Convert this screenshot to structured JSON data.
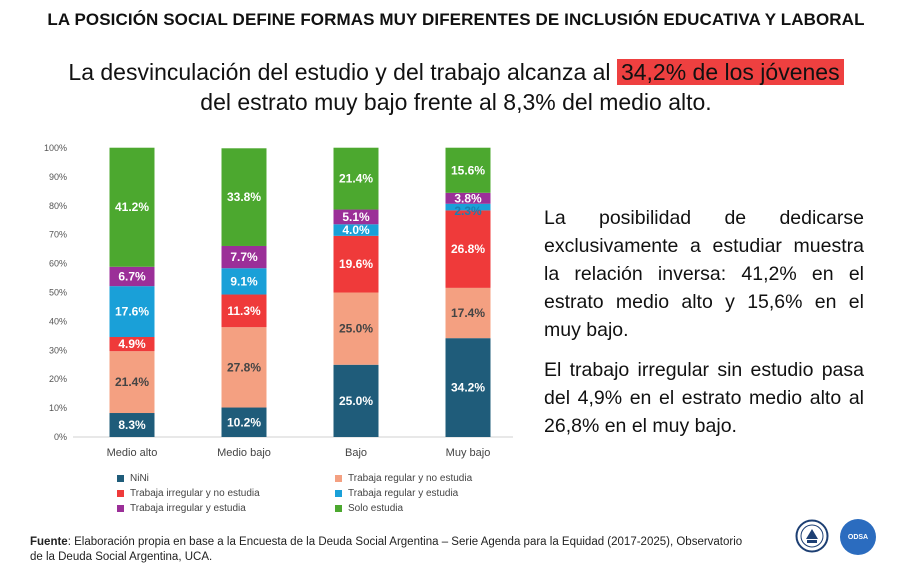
{
  "header": {
    "title": "LA POSICIÓN SOCIAL DEFINE FORMAS MUY DIFERENTES DE INCLUSIÓN EDUCATIVA Y LABORAL",
    "subtitle_before": "La desvinculación del estudio y del trabajo alcanza al ",
    "subtitle_highlight": "34,2% de los jóvenes",
    "subtitle_after": "del estrato muy bajo frente al 8,3% del medio alto."
  },
  "notes": {
    "p1": "La posibilidad de dedicarse exclusivamente a estudiar muestra la relación inversa: 41,2% en el estrato medio alto y 15,6% en el muy bajo.",
    "p2": "El trabajo irregular sin estudio pasa del 4,9% en el estrato medio alto al 26,8% en el muy bajo."
  },
  "source": {
    "label": "Fuente",
    "text": ": Elaboración propia en base a la Encuesta de la Deuda Social Argentina – Serie Agenda para la Equidad (2017-2025), Observatorio de la Deuda Social Argentina, UCA."
  },
  "logos": {
    "odsa": "ODSA"
  },
  "chart_data": {
    "type": "bar",
    "stacked": true,
    "categories": [
      "Medio alto",
      "Medio bajo",
      "Bajo",
      "Muy bajo"
    ],
    "ylim": [
      0,
      100
    ],
    "yticks": [
      "0%",
      "10%",
      "20%",
      "30%",
      "40%",
      "50%",
      "60%",
      "70%",
      "80%",
      "90%",
      "100%"
    ],
    "series": [
      {
        "name": "NiNi",
        "color": "#1f5c7a",
        "values": [
          8.3,
          10.2,
          25.0,
          34.2
        ],
        "labels": [
          "8.3%",
          "10.2%",
          "25.0%",
          "34.2%"
        ]
      },
      {
        "name": "Trabaja regular y no estudia",
        "color": "#f4a081",
        "values": [
          21.4,
          27.8,
          25.0,
          17.4
        ],
        "labels": [
          "21.4%",
          "27.8%",
          "25.0%",
          "17.4%"
        ]
      },
      {
        "name": "Trabaja irregular y no estudia",
        "color": "#ef3a3a",
        "values": [
          4.9,
          11.3,
          19.6,
          26.8
        ],
        "labels": [
          "4.9%",
          "11.3%",
          "19.6%",
          "26.8%"
        ]
      },
      {
        "name": "Trabaja regular y estudia",
        "color": "#1aa0d8",
        "values": [
          17.6,
          9.1,
          4.0,
          2.3
        ],
        "labels": [
          "17.6%",
          "9.1%",
          "4.0%",
          "2.3%"
        ]
      },
      {
        "name": "Trabaja irregular y estudia",
        "color": "#9b2f98",
        "values": [
          6.7,
          7.7,
          5.1,
          3.8
        ],
        "labels": [
          "6.7%",
          "7.7%",
          "5.1%",
          "3.8%"
        ]
      },
      {
        "name": "Solo estudia",
        "color": "#4ca82f",
        "values": [
          41.2,
          33.8,
          21.4,
          15.6
        ],
        "labels": [
          "41.2%",
          "33.8%",
          "21.4%",
          "15.6%"
        ]
      }
    ],
    "legend_position": "bottom",
    "grid": false
  }
}
